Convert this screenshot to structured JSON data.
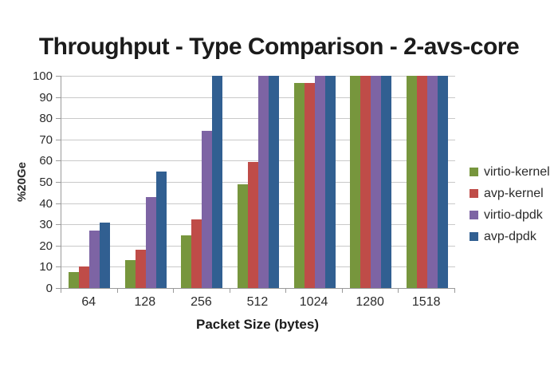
{
  "chart_data": {
    "type": "bar",
    "title": "Throughput - Type Comparison - 2-avs-core",
    "xlabel": "Packet Size (bytes)",
    "ylabel": "%20Ge",
    "categories": [
      "64",
      "128",
      "256",
      "512",
      "1024",
      "1280",
      "1518"
    ],
    "series": [
      {
        "name": "virtio-kernel",
        "color": "#77963d",
        "values": [
          7.5,
          13,
          25,
          49,
          96.5,
          100,
          100
        ]
      },
      {
        "name": "avp-kernel",
        "color": "#bf4c48",
        "values": [
          10,
          18,
          32.5,
          59.5,
          96.5,
          100,
          100
        ]
      },
      {
        "name": "virtio-dpdk",
        "color": "#7d64a4",
        "values": [
          27,
          43,
          74,
          100,
          100,
          100,
          100
        ]
      },
      {
        "name": "avp-dpdk",
        "color": "#315f91",
        "values": [
          31,
          55,
          100,
          100,
          100,
          100,
          100
        ]
      }
    ],
    "ylim": [
      0,
      100
    ],
    "yticks": [
      0,
      10,
      20,
      30,
      40,
      50,
      60,
      70,
      80,
      90,
      100
    ],
    "grid": true,
    "legend_position": "right"
  },
  "colors": {
    "background": "#ffffff",
    "gridline": "#c9c9c9",
    "axis": "#9a9a9a",
    "text": "#2b2b2b",
    "title_text": "#1b1b1b"
  }
}
